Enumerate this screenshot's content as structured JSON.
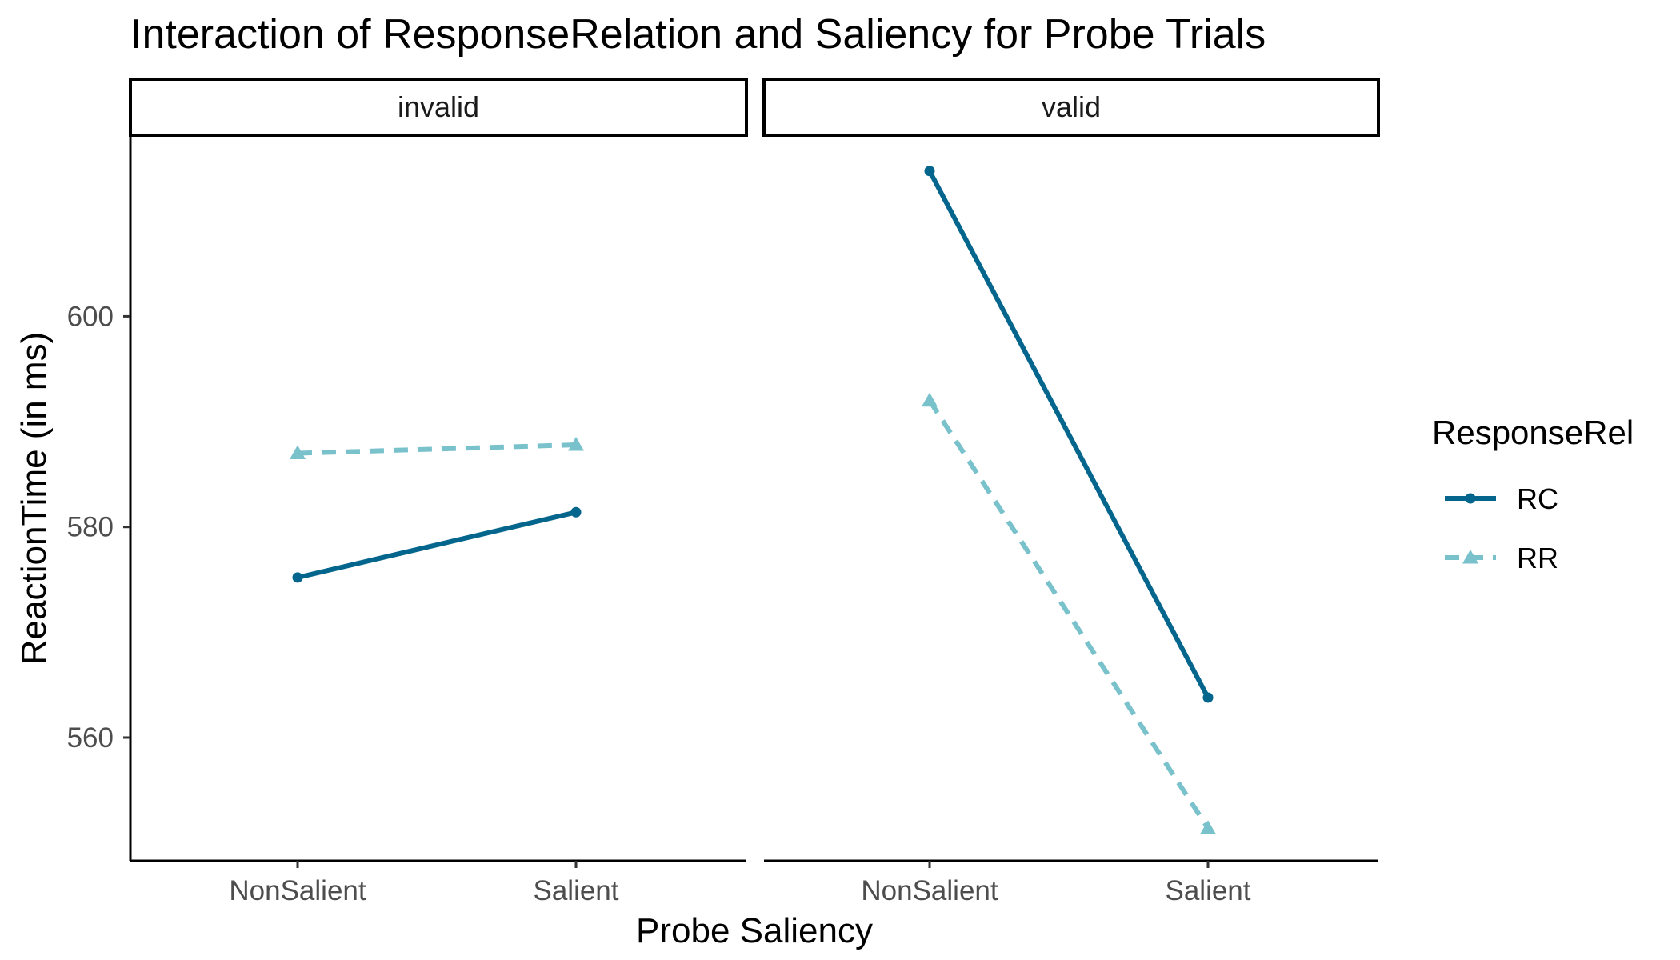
{
  "chart_data": {
    "type": "line",
    "title": "Interaction of ResponseRelation and Saliency for Probe Trials",
    "xlabel": "Probe Saliency",
    "ylabel": "ReactionTime (in ms)",
    "categories": [
      "NonSalient",
      "Salient"
    ],
    "ylim": [
      548.3,
      617.2
    ],
    "yticks": [
      560,
      580,
      600
    ],
    "legend": {
      "title": "ResponseRel",
      "placement": "right"
    },
    "facets": [
      {
        "label": "invalid",
        "series": [
          {
            "name": "RC",
            "values": [
              575.2,
              581.4
            ]
          },
          {
            "name": "RR",
            "values": [
              587.0,
              587.8
            ]
          }
        ]
      },
      {
        "label": "valid",
        "series": [
          {
            "name": "RC",
            "values": [
              613.8,
              563.8
            ]
          },
          {
            "name": "RR",
            "values": [
              592.0,
              551.4
            ]
          }
        ]
      }
    ],
    "series_styles": [
      {
        "name": "RC",
        "color": "#05668d",
        "line": "solid",
        "marker": "circle"
      },
      {
        "name": "RR",
        "color": "#79c2cc",
        "line": "dashed",
        "marker": "triangle"
      }
    ]
  }
}
